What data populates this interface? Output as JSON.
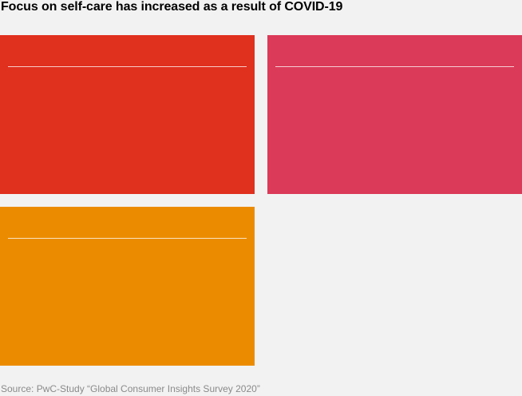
{
  "title": "Focus on self-care has increased as a result of COVID-19",
  "cards": [
    {
      "color": "#e0301e"
    },
    {
      "color": "#db3a58"
    },
    {
      "color": "#eb8c00"
    }
  ],
  "source": "Source: PwC-Study “Global Consumer Insights Survey 2020”"
}
